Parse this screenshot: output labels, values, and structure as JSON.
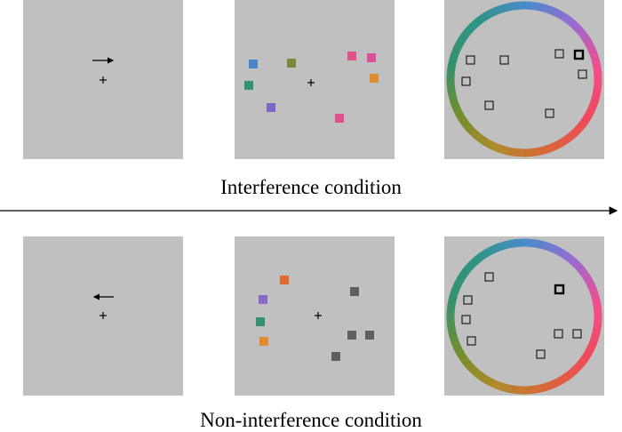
{
  "labels": {
    "interference": "Interference condition",
    "non_interference": "Non-interference condition"
  },
  "colors": {
    "panel_bg": "#c0c0c0",
    "axis": "#000000",
    "probe_square": "#000000",
    "gray_square": "#5f5f5f",
    "wheel_stops": [
      "#4a8bcc",
      "#9b6ad1",
      "#f54c8a",
      "#ee4a5a",
      "#d9673a",
      "#b08a2b",
      "#6f8f2e",
      "#35906e",
      "#2f9488",
      "#4a8bcc"
    ]
  },
  "rows": [
    {
      "cue": {
        "icon": "right-arrow-icon",
        "direction": "right"
      },
      "memory_items": [
        {
          "color": "#4a86c8"
        },
        {
          "color": "#7a8a3a"
        },
        {
          "color": "#e0508a"
        },
        {
          "color": "#e0509a"
        },
        {
          "color": "#35906e"
        },
        {
          "color": "#e08a30"
        },
        {
          "color": "#7d68c8"
        },
        {
          "color": "#e0508a"
        }
      ],
      "probe_count": 9,
      "highlighted_probe": 6
    },
    {
      "cue": {
        "icon": "left-arrow-icon",
        "direction": "left"
      },
      "memory_items": [
        {
          "color": "#e06a30"
        },
        {
          "color": "#5f5f5f"
        },
        {
          "color": "#8a6ac8"
        },
        {
          "color": "#35906e"
        },
        {
          "color": "#5f5f5f"
        },
        {
          "color": "#5f5f5f"
        },
        {
          "color": "#e08a30"
        },
        {
          "color": "#5f5f5f"
        }
      ],
      "probe_count": 9,
      "highlighted_probe": 1
    }
  ]
}
